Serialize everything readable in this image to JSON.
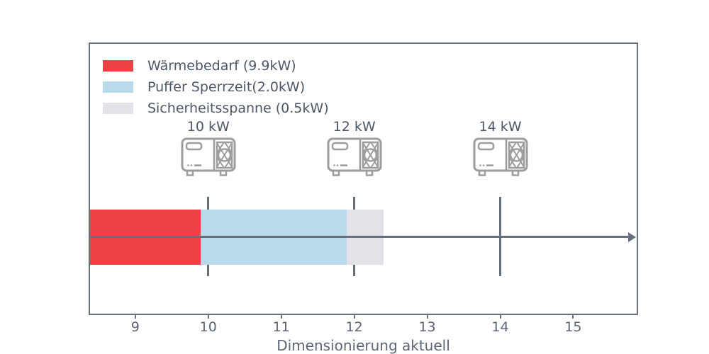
{
  "xlabel": "Dimensionierung aktuell",
  "legend": {
    "items": [
      {
        "label": "Wärmebedarf (9.9kW)",
        "color": "#ee4146"
      },
      {
        "label": "Puffer Sperrzeit(2.0kW)",
        "color": "#b8dbec"
      },
      {
        "label": "Sicherheitsspanne (0.5kW)",
        "color": "#e2e3e8"
      }
    ]
  },
  "chart_data": {
    "type": "bar",
    "orientation": "horizontal",
    "title": "",
    "xlabel": "Dimensionierung aktuell",
    "xlim": [
      8.38,
      15.87
    ],
    "xticks": [
      9,
      10,
      11,
      12,
      13,
      14,
      15
    ],
    "grid": false,
    "legend_position": "upper-left-inside",
    "segments": [
      {
        "name": "Wärmebedarf",
        "value_kw": 9.9,
        "from": 8.38,
        "to": 9.9,
        "color": "#ee4146"
      },
      {
        "name": "Puffer Sperrzeit",
        "value_kw": 2.0,
        "from": 9.9,
        "to": 11.9,
        "color": "#b8dbec"
      },
      {
        "name": "Sicherheitsspanne",
        "value_kw": 0.5,
        "from": 11.9,
        "to": 12.4,
        "color": "#e2e3e8"
      }
    ],
    "markers": [
      {
        "label": "10 kW",
        "value": 10
      },
      {
        "label": "12 kW",
        "value": 12
      },
      {
        "label": "14 kW",
        "value": 14
      }
    ],
    "colors": {
      "frame": "#6a7280",
      "axis_line": "#68707e",
      "text_dark": "#4d5866",
      "tick_text": "#5c6573",
      "icon_gray": "#9d9d9d"
    }
  }
}
